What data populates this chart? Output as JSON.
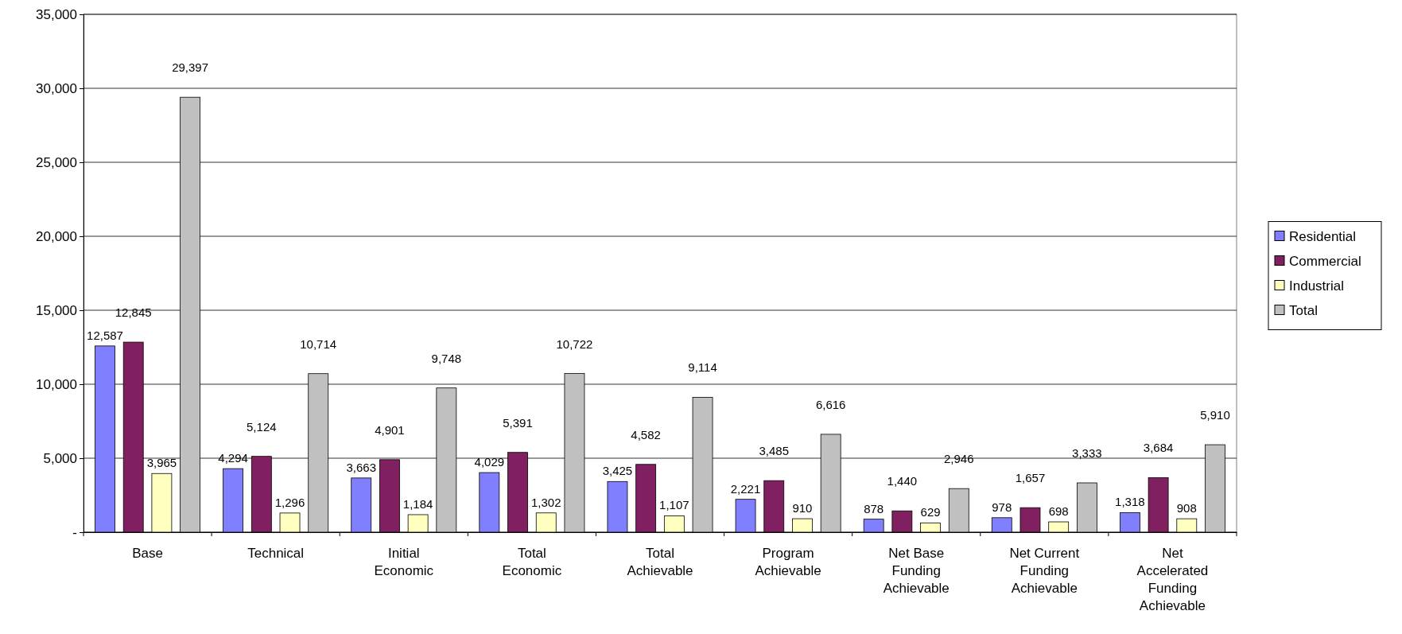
{
  "chart_data": {
    "type": "bar",
    "categories": [
      "Base",
      "Technical",
      "Initial Economic",
      "Total Economic",
      "Total Achievable",
      "Program Achievable",
      "Net Base Funding Achievable",
      "Net Current Funding Achievable",
      "Net Accelerated Funding Achievable"
    ],
    "series": [
      {
        "name": "Residential",
        "color": "#8080ff",
        "values": [
          12587,
          4294,
          3663,
          4029,
          3425,
          2221,
          878,
          978,
          1318
        ],
        "value_labels": [
          "12,587",
          "4,294",
          "3,663",
          "4,029",
          "3,425",
          "2,221",
          "878",
          "978",
          "1,318"
        ]
      },
      {
        "name": "Commercial",
        "color": "#802060",
        "values": [
          12845,
          5124,
          4901,
          5391,
          4582,
          3485,
          1440,
          1657,
          3684
        ],
        "value_labels": [
          "12,845",
          "5,124",
          "4,901",
          "5,391",
          "4,582",
          "3,485",
          "1,440",
          "1,657",
          "3,684"
        ]
      },
      {
        "name": "Industrial",
        "color": "#ffffc0",
        "values": [
          3965,
          1296,
          1184,
          1302,
          1107,
          910,
          629,
          698,
          908
        ],
        "value_labels": [
          "3,965",
          "1,296",
          "1,184",
          "1,302",
          "1,107",
          "910",
          "629",
          "698",
          "908"
        ]
      },
      {
        "name": "Total",
        "color": "#c0c0c0",
        "values": [
          29397,
          10714,
          9748,
          10722,
          9114,
          6616,
          2946,
          3333,
          5910
        ],
        "value_labels": [
          "29,397",
          "10,714",
          "9,748",
          "10,722",
          "9,114",
          "6,616",
          "2,946",
          "3,333",
          "5,910"
        ]
      }
    ],
    "ylim": [
      0,
      35000
    ],
    "yticks": [
      {
        "value": 0,
        "label": "-"
      },
      {
        "value": 5000,
        "label": "5,000"
      },
      {
        "value": 10000,
        "label": "10,000"
      },
      {
        "value": 15000,
        "label": "15,000"
      },
      {
        "value": 20000,
        "label": "20,000"
      },
      {
        "value": 25000,
        "label": "25,000"
      },
      {
        "value": 30000,
        "label": "30,000"
      },
      {
        "value": 35000,
        "label": "35,000"
      }
    ],
    "grid": "y",
    "legend": "right"
  }
}
